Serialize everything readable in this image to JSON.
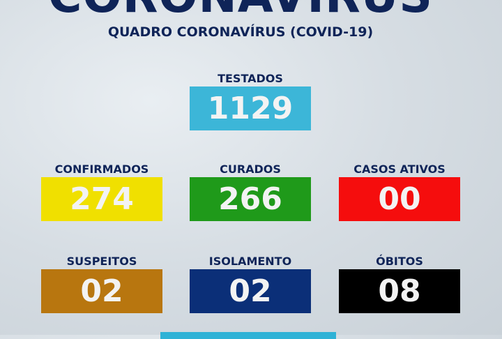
{
  "header": {
    "title": "CORONAVÍRUS",
    "subtitle": "QUADRO CORONAVÍRUS (COVID-19)"
  },
  "stats": [
    {
      "label": "TESTADOS",
      "value": "1129",
      "color": "#3cb6d8"
    },
    {
      "label": "CONFIRMADOS",
      "value": "274",
      "color": "#f0e000"
    },
    {
      "label": "CURADOS",
      "value": "266",
      "color": "#1f9a1a"
    },
    {
      "label": "CASOS ATIVOS",
      "value": "00",
      "color": "#f50d0d"
    },
    {
      "label": "SUSPEITOS",
      "value": "02",
      "color": "#b8760f"
    },
    {
      "label": "ISOLAMENTO",
      "value": "02",
      "color": "#0b2f78"
    },
    {
      "label": "ÓBITOS",
      "value": "08",
      "color": "#000000"
    }
  ]
}
